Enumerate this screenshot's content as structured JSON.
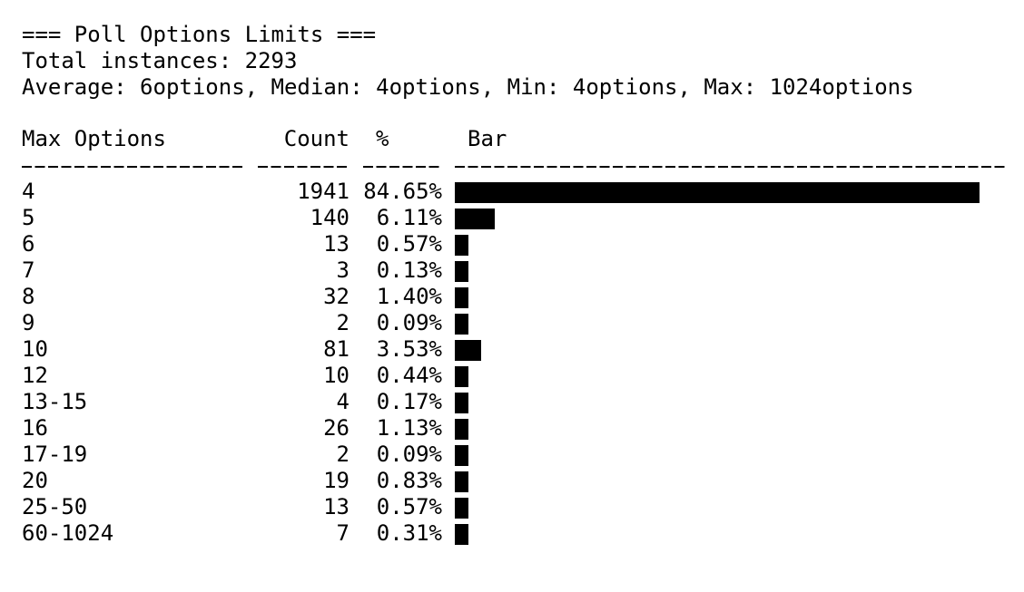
{
  "header": {
    "title": "=== Poll Options Limits ===",
    "total": "Total instances: 2293",
    "stats": "Average: 6options, Median: 4options, Min: 4options, Max: 1024options"
  },
  "columns": {
    "label": "Max Options",
    "count": "Count",
    "pct": "%",
    "bar": "Bar"
  },
  "colors": {
    "bar": "#000000",
    "text": "#000000",
    "background": "#ffffff"
  },
  "chart_data": {
    "type": "bar",
    "orientation": "horizontal",
    "categories": [
      "4",
      "5",
      "6",
      "7",
      "8",
      "9",
      "10",
      "12",
      "13-15",
      "16",
      "17-19",
      "20",
      "25-50",
      "60-1024"
    ],
    "counts": [
      "1941",
      "140",
      "13",
      "3",
      "32",
      "2",
      "81",
      "10",
      "4",
      "26",
      "2",
      "19",
      "13",
      "7"
    ],
    "percents": [
      "84.65%",
      "6.11%",
      "0.57%",
      "0.13%",
      "1.40%",
      "0.09%",
      "3.53%",
      "0.44%",
      "0.17%",
      "1.13%",
      "0.09%",
      "0.83%",
      "0.57%",
      "0.31%"
    ],
    "values": [
      84.65,
      6.11,
      0.57,
      0.13,
      1.4,
      0.09,
      3.53,
      0.44,
      0.17,
      1.13,
      0.09,
      0.83,
      0.57,
      0.31
    ]
  }
}
